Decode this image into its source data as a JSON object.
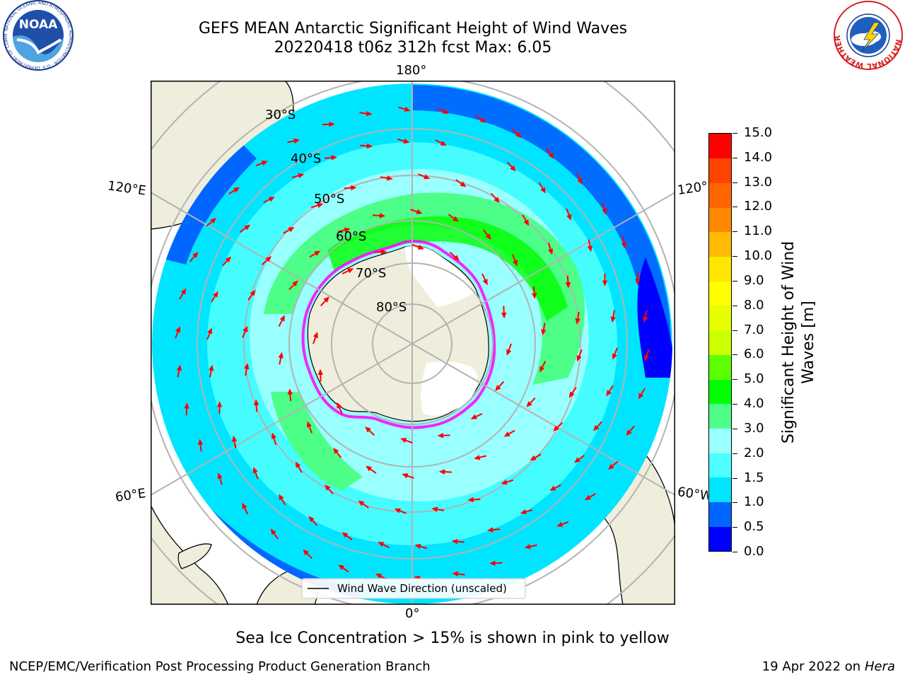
{
  "header": {
    "title_line1": "GEFS MEAN Antarctic Significant Height of Wind Waves",
    "title_line2": "20220418 t06z 312h fcst   Max: 6.05"
  },
  "logos": {
    "noaa": {
      "text": "NOAA",
      "ring_text": "NATIONAL OCEANIC AND ATMOSPHERIC ADMINISTRATION · U.S. DEPARTMENT OF COMMERCE"
    },
    "nws": {
      "ring_text": "NATIONAL WEATHER SERVICE"
    }
  },
  "map": {
    "projection": "south-polar-stereographic",
    "longitude_labels": {
      "top": "180°",
      "bottom": "0°",
      "upper_left": "120°E",
      "lower_left": "60°E",
      "upper_right": "120°",
      "lower_right": "60°W"
    },
    "latitude_labels": [
      "30°S",
      "40°S",
      "50°S",
      "60°S",
      "70°S",
      "80°S"
    ],
    "legend_label": "Wind Wave Direction (unscaled)",
    "colors": {
      "land": "#efeedc",
      "ice_shelf": "#ffffff",
      "arrow": "#ff0000",
      "grid": "#b3b3b3",
      "ice_edge": [
        "#ff00ff",
        "#ffaa00",
        "#ffff00"
      ]
    }
  },
  "colorbar": {
    "label": "Significant Height of Wind Waves [m]",
    "label_line1": "Significant Height of Wind",
    "label_line2": "Waves [m]",
    "ticks": [
      "0.0",
      "0.5",
      "1.0",
      "1.5",
      "2.0",
      "3.0",
      "4.0",
      "5.0",
      "6.0",
      "7.0",
      "8.0",
      "9.0",
      "10.0",
      "11.0",
      "12.0",
      "13.0",
      "14.0",
      "15.0"
    ],
    "colors": [
      "#0000ff",
      "#0066ff",
      "#00e5ff",
      "#4dffff",
      "#99ffff",
      "#4dff88",
      "#00ff00",
      "#5bff00",
      "#ccff00",
      "#e6ff00",
      "#ffff00",
      "#ffe600",
      "#ffbb00",
      "#ff8800",
      "#ff6600",
      "#ff4400",
      "#ff0000"
    ]
  },
  "footer": {
    "note": "Sea Ice Concentration > 15% is shown in pink to yellow",
    "credit_left": "NCEP/EMC/Verification Post Processing Product Generation Branch",
    "credit_right_date": "19 Apr 2022 on",
    "credit_right_machine": "Hera"
  }
}
